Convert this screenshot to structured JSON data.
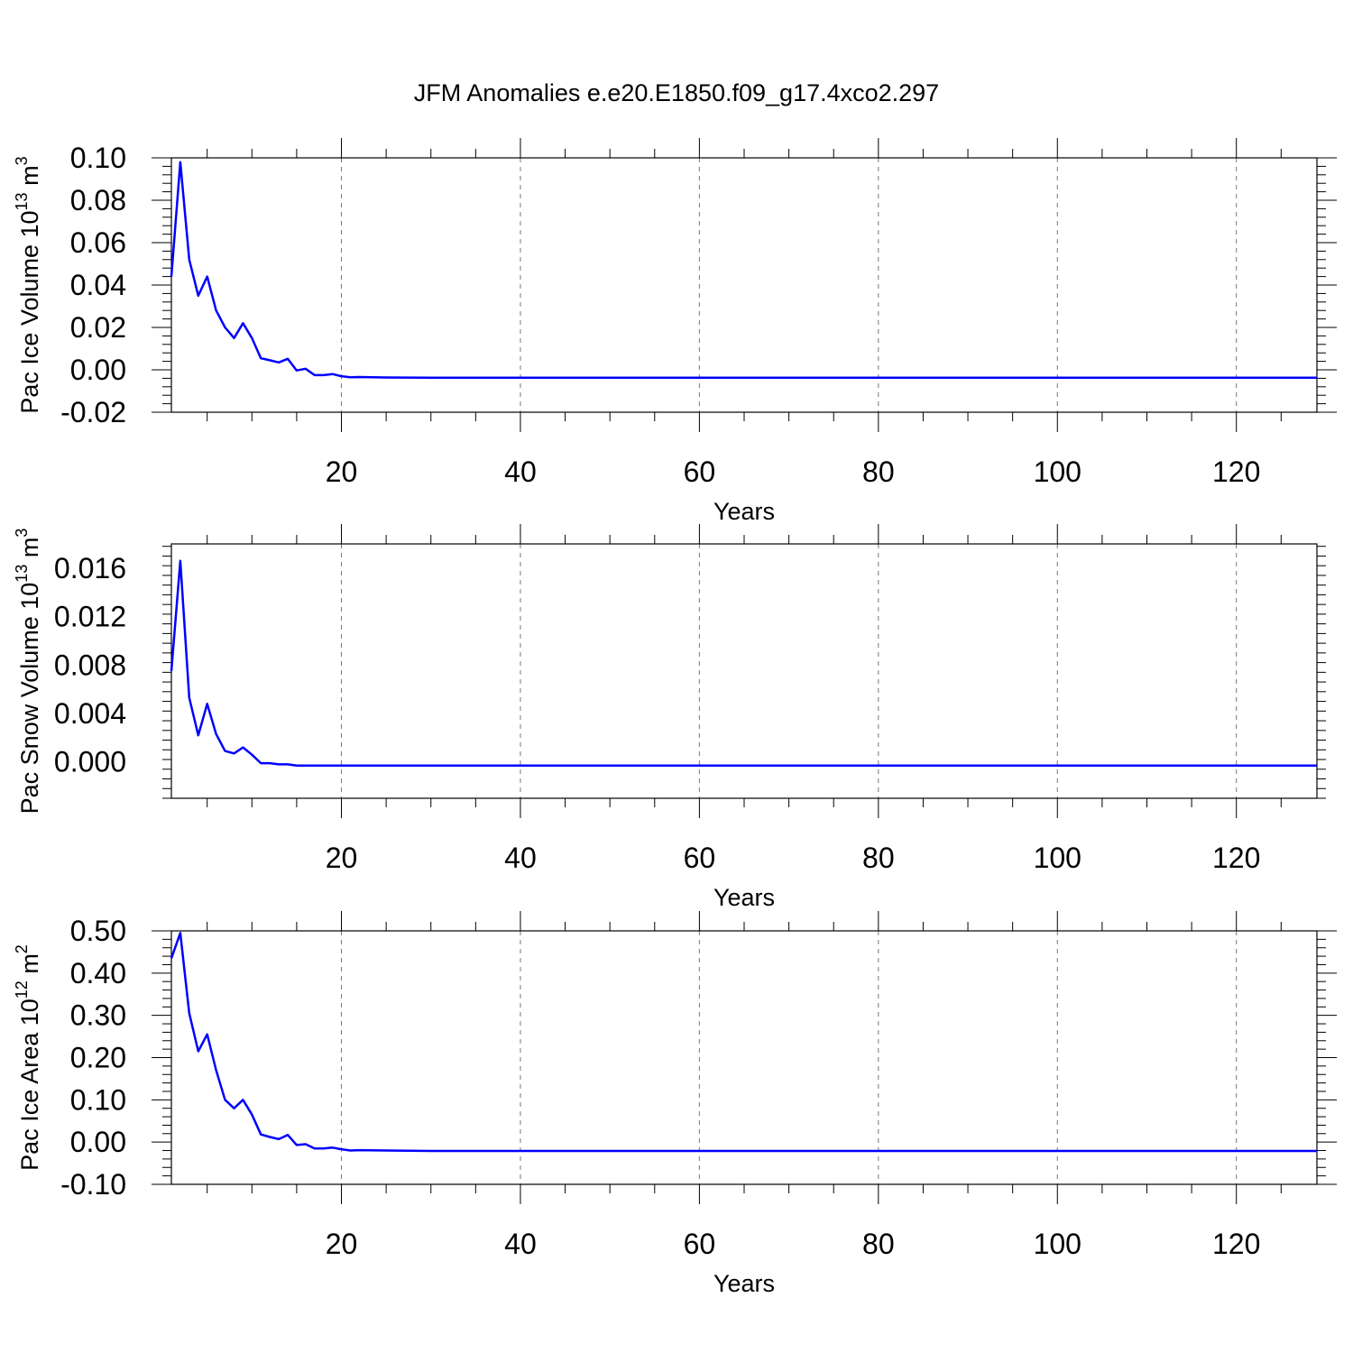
{
  "figure": {
    "title": "JFM Anomalies e.e20.E1850.f09_g17.4xco2.297"
  },
  "colors": {
    "series": "#0000ff",
    "grid": "#777777",
    "axes": "#000000"
  },
  "chart_data": [
    {
      "type": "line",
      "xlabel": "Years",
      "ylabel": {
        "text": "Pac Ice Volume 10",
        "exponent": "13",
        "unit": " m",
        "unit_exponent": "3"
      },
      "xlim": [
        1,
        129
      ],
      "ylim": [
        -0.02,
        0.1
      ],
      "xticks": [
        20,
        40,
        60,
        80,
        100,
        120
      ],
      "xtick_labels": [
        "20",
        "40",
        "60",
        "80",
        "100",
        "120"
      ],
      "yticks": [
        -0.02,
        0.0,
        0.02,
        0.04,
        0.06,
        0.08,
        0.1
      ],
      "ytick_labels": [
        "-0.02",
        "0.00",
        "0.02",
        "0.04",
        "0.06",
        "0.08",
        "0.10"
      ],
      "grid": "vertical dashed at major x ticks",
      "series": [
        {
          "x": [
            1,
            2,
            3,
            4,
            5,
            6,
            7,
            8,
            9,
            10,
            11,
            12,
            13,
            14,
            15,
            16,
            17,
            18,
            19,
            20,
            21,
            22,
            25,
            30,
            40,
            50,
            60,
            70,
            80,
            90,
            100,
            110,
            120,
            129
          ],
          "values": [
            0.044,
            0.098,
            0.052,
            0.035,
            0.044,
            0.028,
            0.02,
            0.015,
            0.022,
            0.015,
            0.0055,
            0.0045,
            0.0035,
            0.0052,
            -0.0003,
            0.0005,
            -0.0025,
            -0.0025,
            -0.002,
            -0.003,
            -0.0035,
            -0.0034,
            -0.0036,
            -0.0037,
            -0.0037,
            -0.0037,
            -0.0037,
            -0.0037,
            -0.0037,
            -0.0037,
            -0.0037,
            -0.0037,
            -0.0037,
            -0.0037
          ]
        }
      ]
    },
    {
      "type": "line",
      "xlabel": "Years",
      "ylabel": {
        "text": "Pac Snow Volume 10",
        "exponent": "13",
        "unit": " m",
        "unit_exponent": "3"
      },
      "xlim": [
        1,
        129
      ],
      "ylim": [
        -0.003,
        0.018
      ],
      "xticks": [
        20,
        40,
        60,
        80,
        100,
        120
      ],
      "xtick_labels": [
        "20",
        "40",
        "60",
        "80",
        "100",
        "120"
      ],
      "yticks": [
        0.0,
        0.004,
        0.008,
        0.012,
        0.016
      ],
      "ytick_labels": [
        "0.000",
        "0.004",
        "0.008",
        "0.012",
        "0.016"
      ],
      "grid": "vertical dashed at major x ticks",
      "series": [
        {
          "x": [
            1,
            2,
            3,
            4,
            5,
            6,
            7,
            8,
            9,
            10,
            11,
            12,
            13,
            14,
            15,
            16,
            17,
            18,
            20,
            25,
            30,
            40,
            50,
            60,
            70,
            80,
            90,
            100,
            110,
            120,
            129
          ],
          "values": [
            0.0075,
            0.0166,
            0.0053,
            0.0022,
            0.0048,
            0.0023,
            0.0009,
            0.0007,
            0.0012,
            0.0006,
            -0.0001,
            -0.0001,
            -0.0002,
            -0.0002,
            -0.0003,
            -0.0003,
            -0.0003,
            -0.0003,
            -0.0003,
            -0.0003,
            -0.0003,
            -0.0003,
            -0.0003,
            -0.0003,
            -0.0003,
            -0.0003,
            -0.0003,
            -0.0003,
            -0.0003,
            -0.0003,
            -0.0003
          ]
        }
      ]
    },
    {
      "type": "line",
      "xlabel": "Years",
      "ylabel": {
        "text": "Pac Ice Area 10",
        "exponent": "12",
        "unit": " m",
        "unit_exponent": "2"
      },
      "xlim": [
        1,
        129
      ],
      "ylim": [
        -0.1,
        0.5
      ],
      "xticks": [
        20,
        40,
        60,
        80,
        100,
        120
      ],
      "xtick_labels": [
        "20",
        "40",
        "60",
        "80",
        "100",
        "120"
      ],
      "yticks": [
        -0.1,
        0.0,
        0.1,
        0.2,
        0.3,
        0.4,
        0.5
      ],
      "ytick_labels": [
        "-0.10",
        "0.00",
        "0.10",
        "0.20",
        "0.30",
        "0.40",
        "0.50"
      ],
      "grid": "vertical dashed at major x ticks",
      "series": [
        {
          "x": [
            1,
            2,
            3,
            4,
            5,
            6,
            7,
            8,
            9,
            10,
            11,
            12,
            13,
            14,
            15,
            16,
            17,
            18,
            19,
            20,
            21,
            22,
            25,
            30,
            40,
            50,
            60,
            70,
            80,
            90,
            100,
            110,
            120,
            129
          ],
          "values": [
            0.435,
            0.495,
            0.305,
            0.215,
            0.255,
            0.17,
            0.1,
            0.08,
            0.1,
            0.065,
            0.018,
            0.012,
            0.007,
            0.017,
            -0.007,
            -0.005,
            -0.015,
            -0.015,
            -0.013,
            -0.017,
            -0.02,
            -0.019,
            -0.02,
            -0.021,
            -0.021,
            -0.021,
            -0.021,
            -0.021,
            -0.021,
            -0.021,
            -0.021,
            -0.021,
            -0.021,
            -0.021
          ]
        }
      ]
    }
  ]
}
